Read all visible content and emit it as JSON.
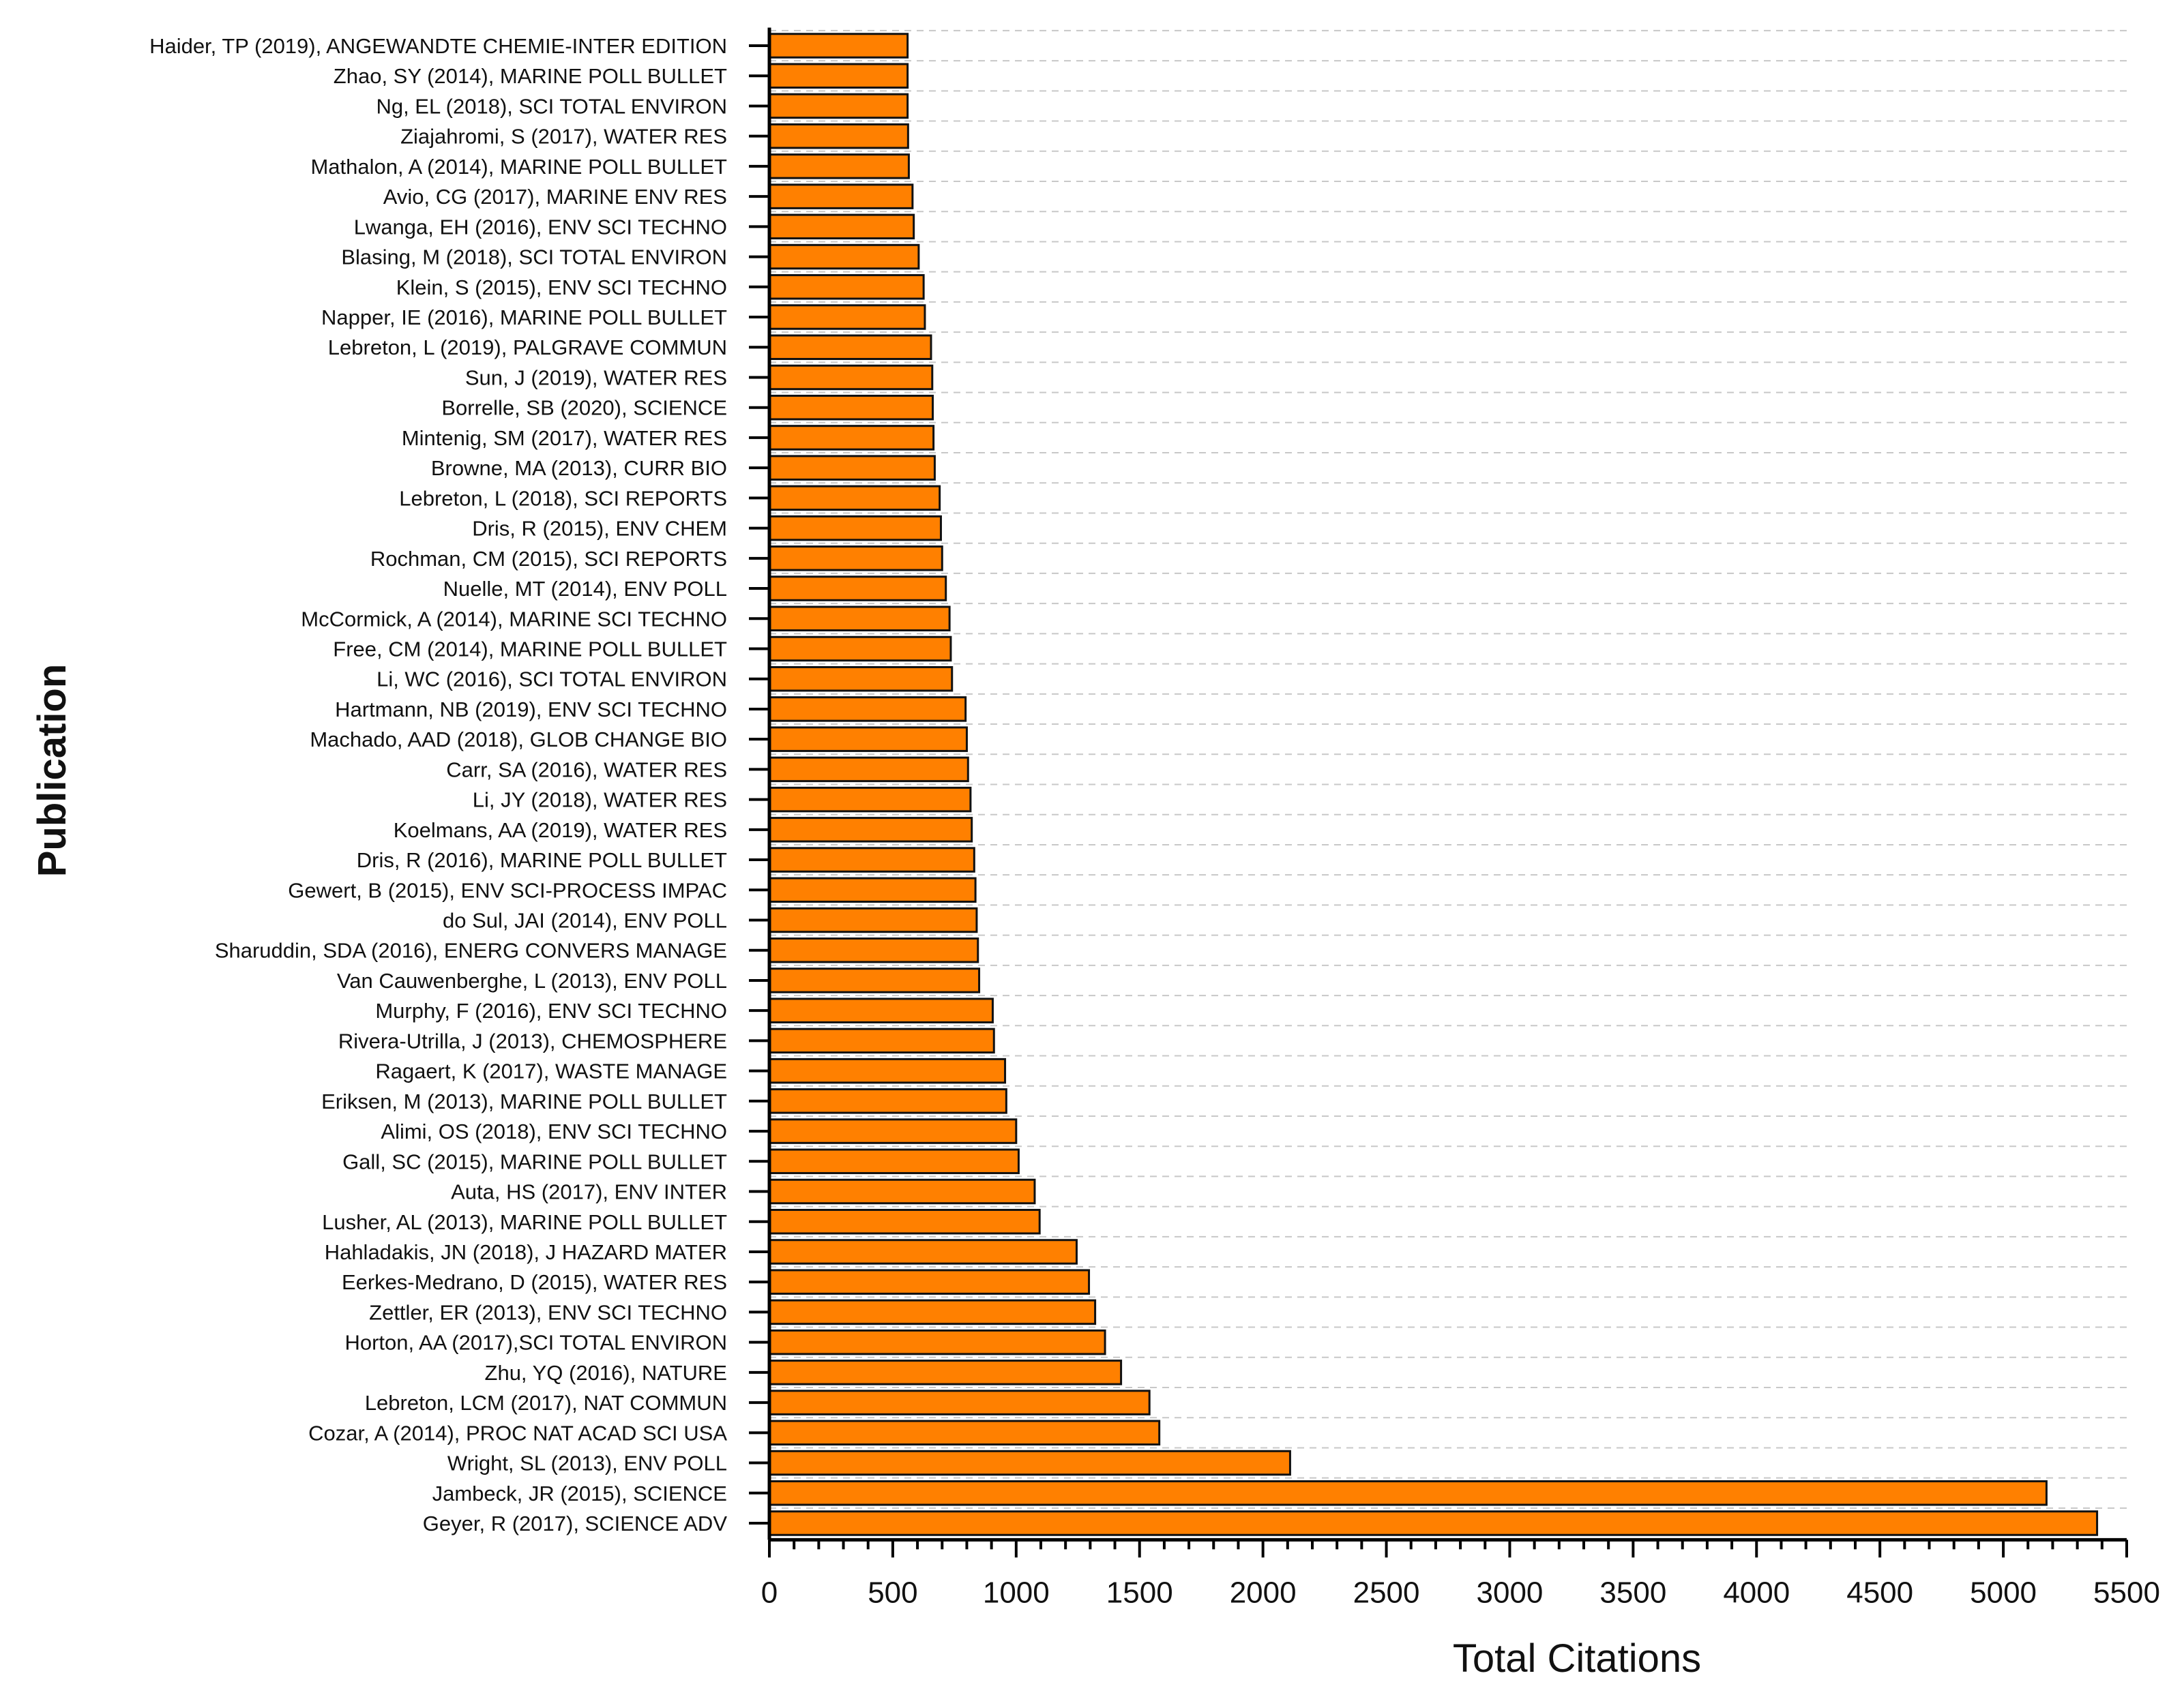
{
  "chart_data": {
    "type": "bar",
    "orientation": "horizontal",
    "xlabel": "Total Citations",
    "ylabel": "Publication",
    "xlim": [
      0,
      5500
    ],
    "xticks": [
      0,
      500,
      1000,
      1500,
      2000,
      2500,
      3000,
      3500,
      4000,
      4500,
      5000,
      5500
    ],
    "grid": "horizontal-dashed",
    "bar_color": "#ff8000",
    "categories": [
      "Haider, TP (2019), ANGEWANDTE CHEMIE-INTER EDITION",
      "Zhao, SY (2014), MARINE POLL BULLET",
      "Ng, EL (2018), SCI TOTAL ENVIRON",
      "Ziajahromi, S (2017), WATER RES",
      "Mathalon, A (2014), MARINE POLL BULLET",
      "Avio, CG (2017), MARINE ENV RES",
      "Lwanga, EH (2016), ENV SCI TECHNO",
      "Blasing, M (2018), SCI TOTAL ENVIRON",
      "Klein, S (2015), ENV SCI TECHNO",
      "Napper, IE (2016), MARINE POLL BULLET",
      "Lebreton, L (2019), PALGRAVE COMMUN",
      "Sun, J (2019), WATER RES",
      "Borrelle, SB (2020), SCIENCE",
      "Mintenig, SM (2017), WATER RES",
      "Browne, MA (2013), CURR BIO",
      "Lebreton, L (2018), SCI REPORTS",
      "Dris, R (2015), ENV CHEM",
      "Rochman, CM (2015), SCI REPORTS",
      "Nuelle, MT (2014), ENV POLL",
      "McCormick, A (2014), MARINE SCI TECHNO",
      "Free, CM (2014), MARINE POLL BULLET",
      "Li, WC (2016), SCI TOTAL ENVIRON",
      "Hartmann, NB (2019), ENV SCI TECHNO",
      "Machado, AAD (2018), GLOB CHANGE BIO",
      "Carr, SA (2016), WATER RES",
      "Li, JY (2018), WATER RES",
      "Koelmans, AA (2019), WATER RES",
      "Dris, R (2016), MARINE POLL BULLET",
      "Gewert, B (2015), ENV SCI-PROCESS IMPAC",
      "do Sul, JAI (2014), ENV POLL",
      "Sharuddin, SDA (2016), ENERG CONVERS MANAGE",
      "Van Cauwenberghe, L (2013), ENV POLL",
      "Murphy, F (2016), ENV SCI TECHNO",
      "Rivera-Utrilla, J (2013), CHEMOSPHERE",
      "Ragaert, K (2017), WASTE MANAGE",
      "Eriksen, M (2013), MARINE POLL BULLET",
      "Alimi, OS (2018), ENV SCI TECHNO",
      "Gall, SC (2015), MARINE POLL BULLET",
      "Auta, HS (2017), ENV INTER",
      "Lusher, AL (2013), MARINE POLL BULLET",
      "Hahladakis, JN (2018), J HAZARD MATER",
      "Eerkes-Medrano, D (2015), WATER RES",
      "Zettler, ER (2013), ENV SCI TECHNO",
      "Horton, AA (2017),SCI TOTAL ENVIRON",
      "Zhu, YQ (2016), NATURE",
      "Lebreton, LCM (2017), NAT COMMUN",
      "Cozar, A (2014), PROC NAT ACAD SCI USA",
      "Wright, SL (2013), ENV POLL",
      "Jambeck, JR (2015), SCIENCE",
      "Geyer, R (2017), SCIENCE ADV"
    ],
    "values": [
      560,
      560,
      560,
      562,
      565,
      580,
      585,
      605,
      625,
      630,
      655,
      660,
      662,
      665,
      670,
      690,
      695,
      700,
      715,
      730,
      735,
      740,
      795,
      800,
      805,
      815,
      820,
      830,
      835,
      840,
      845,
      850,
      905,
      910,
      955,
      960,
      1000,
      1010,
      1075,
      1095,
      1245,
      1295,
      1320,
      1360,
      1425,
      1540,
      1580,
      2110,
      5175,
      5380
    ]
  }
}
